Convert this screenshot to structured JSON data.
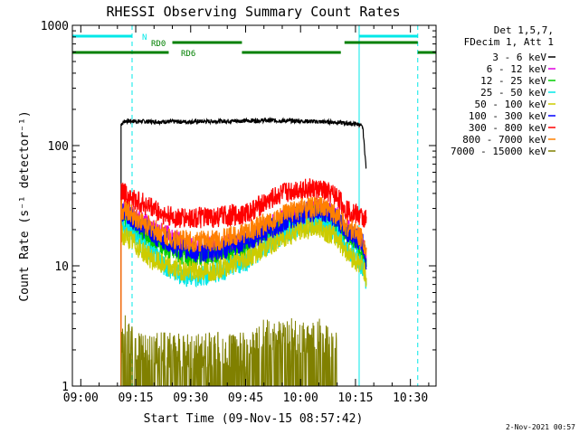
{
  "chart_data": {
    "type": "line",
    "title": "RHESSI Observing Summary Count Rates",
    "xlabel": "Start Time (09-Nov-15 08:57:42)",
    "ylabel": "Count Rate (s⁻¹ detector⁻¹)",
    "x_unit": "time of day (HH:MM)",
    "xlim": [
      "08:57:42",
      "10:37:00"
    ],
    "y_scale": "log",
    "ylim": [
      1,
      1000
    ],
    "x_ticks": [
      "09:00",
      "09:15",
      "09:30",
      "09:45",
      "10:00",
      "10:15",
      "10:30"
    ],
    "y_ticks": [
      {
        "value": 1,
        "label": "1"
      },
      {
        "value": 10,
        "label": "10"
      },
      {
        "value": 100,
        "label": "100"
      },
      {
        "value": 1000,
        "label": "1000"
      }
    ],
    "grid": false,
    "legend_placement": "right",
    "legend_header": [
      "Det 1,5,7,",
      "FDecim 1, Att 1"
    ],
    "footer": "2-Nov-2021 00:57",
    "series": [
      {
        "name": "3 - 6 keV",
        "color": "#000000",
        "x": [
          "09:11",
          "09:12",
          "09:20",
          "09:30",
          "09:40",
          "09:50",
          "10:00",
          "10:10",
          "10:16",
          "10:17",
          "10:18"
        ],
        "values": [
          150,
          160,
          158,
          158,
          160,
          162,
          160,
          156,
          150,
          140,
          60
        ]
      },
      {
        "name": "6 - 12 keV",
        "color": "#e000e0",
        "x": [
          "09:11",
          "09:13",
          "09:16",
          "09:20",
          "09:25",
          "09:30",
          "09:35",
          "09:40",
          "09:45",
          "09:50",
          "09:55",
          "10:00",
          "10:05",
          "10:10",
          "10:12",
          "10:15",
          "10:17",
          "10:18"
        ],
        "values": [
          30,
          28,
          24,
          20,
          17,
          14,
          14,
          15,
          16,
          20,
          24,
          28,
          30,
          26,
          21,
          18,
          15,
          12
        ]
      },
      {
        "name": "12 - 25 keV",
        "color": "#00cc00",
        "x": [
          "09:11",
          "09:13",
          "09:16",
          "09:20",
          "09:25",
          "09:30",
          "09:35",
          "09:40",
          "09:45",
          "09:50",
          "09:55",
          "10:00",
          "10:05",
          "10:10",
          "10:12",
          "10:15",
          "10:17",
          "10:18"
        ],
        "values": [
          25,
          23,
          20,
          16,
          13,
          12,
          12,
          13,
          14,
          17,
          21,
          25,
          26,
          22,
          18,
          15,
          13,
          10
        ]
      },
      {
        "name": "25 - 50 keV",
        "color": "#00e8e8",
        "x": [
          "09:11",
          "09:13",
          "09:16",
          "09:20",
          "09:25",
          "09:30",
          "09:35",
          "09:40",
          "09:45",
          "09:50",
          "09:55",
          "10:00",
          "10:05",
          "10:10",
          "10:12",
          "10:15",
          "10:17",
          "10:18"
        ],
        "values": [
          22,
          20,
          16,
          12,
          9,
          8,
          8.5,
          9.5,
          11,
          14,
          18,
          22,
          23,
          19,
          15,
          12,
          10,
          7
        ]
      },
      {
        "name": "50 - 100 keV",
        "color": "#cccc00",
        "x": [
          "09:11",
          "09:13",
          "09:16",
          "09:20",
          "09:25",
          "09:30",
          "09:35",
          "09:40",
          "09:45",
          "09:50",
          "09:55",
          "10:00",
          "10:05",
          "10:10",
          "10:12",
          "10:15",
          "10:17",
          "10:18"
        ],
        "values": [
          18,
          17,
          14,
          11,
          9.5,
          9,
          9,
          10,
          11.5,
          14,
          17,
          20,
          21,
          17,
          14,
          11,
          10,
          8
        ]
      },
      {
        "name": "100 - 300 keV",
        "color": "#0000ff",
        "x": [
          "09:11",
          "09:13",
          "09:16",
          "09:20",
          "09:25",
          "09:30",
          "09:35",
          "09:40",
          "09:45",
          "09:50",
          "09:55",
          "10:00",
          "10:05",
          "10:10",
          "10:12",
          "10:15",
          "10:17",
          "10:18"
        ],
        "values": [
          28,
          26,
          22,
          18,
          15,
          13,
          13,
          14,
          16,
          19,
          23,
          27,
          29,
          25,
          20,
          17,
          15,
          11
        ]
      },
      {
        "name": "300 - 800 keV",
        "color": "#ff0000",
        "x": [
          "09:11",
          "09:13",
          "09:14",
          "09:20",
          "09:23",
          "09:26",
          "09:35",
          "09:45",
          "09:50",
          "09:55",
          "10:00",
          "10:05",
          "10:10",
          "10:12",
          "10:15",
          "10:18"
        ],
        "values": [
          42,
          38,
          36,
          30,
          26,
          25,
          25,
          27,
          33,
          40,
          44,
          43,
          38,
          30,
          27,
          24
        ]
      },
      {
        "name": "800 - 7000 keV",
        "color": "#ff8000",
        "x": [
          "09:11",
          "09:13",
          "09:16",
          "09:20",
          "09:25",
          "09:30",
          "09:35",
          "09:40",
          "09:45",
          "09:50",
          "09:55",
          "10:00",
          "10:05",
          "10:10",
          "10:12",
          "10:15",
          "10:17",
          "10:18"
        ],
        "values": [
          30,
          28,
          24,
          20,
          17,
          16,
          16,
          17,
          19,
          22,
          26,
          30,
          31,
          27,
          22,
          19,
          17,
          13
        ]
      },
      {
        "name": "7000 - 15000 keV",
        "color": "#808000",
        "x": [
          "09:11",
          "09:12",
          "09:13",
          "09:14",
          "09:15",
          "09:47",
          "09:50",
          "09:55",
          "10:00",
          "10:05",
          "10:10"
        ],
        "values": [
          2,
          2.8,
          2.4,
          2.6,
          2,
          2,
          2.6,
          2.8,
          2.5,
          2.6,
          2
        ]
      }
    ],
    "annotations": {
      "state_bars": [
        {
          "label": "N",
          "color": "#00e8e8",
          "segments": [
            [
              "08:57:42",
              "09:14"
            ],
            [
              "10:16",
              "10:32"
            ]
          ]
        },
        {
          "label": "RD0",
          "color": "#008000",
          "segments": [
            [
              "09:25",
              "09:44"
            ],
            [
              "10:12",
              "10:32"
            ]
          ]
        },
        {
          "label": "RD6",
          "color": "#008000",
          "segments": [
            [
              "08:57:42",
              "09:24"
            ],
            [
              "09:44",
              "10:11"
            ],
            [
              "10:32",
              "10:37"
            ]
          ]
        }
      ],
      "vertical_lines": [
        {
          "x": "08:57:42",
          "color": "#00e8e8",
          "style": "solid"
        },
        {
          "x": "09:14",
          "color": "#00e8e8",
          "style": "dashed"
        },
        {
          "x": "10:16",
          "color": "#00e8e8",
          "style": "solid"
        },
        {
          "x": "10:32",
          "color": "#00e8e8",
          "style": "dashed"
        }
      ]
    }
  }
}
